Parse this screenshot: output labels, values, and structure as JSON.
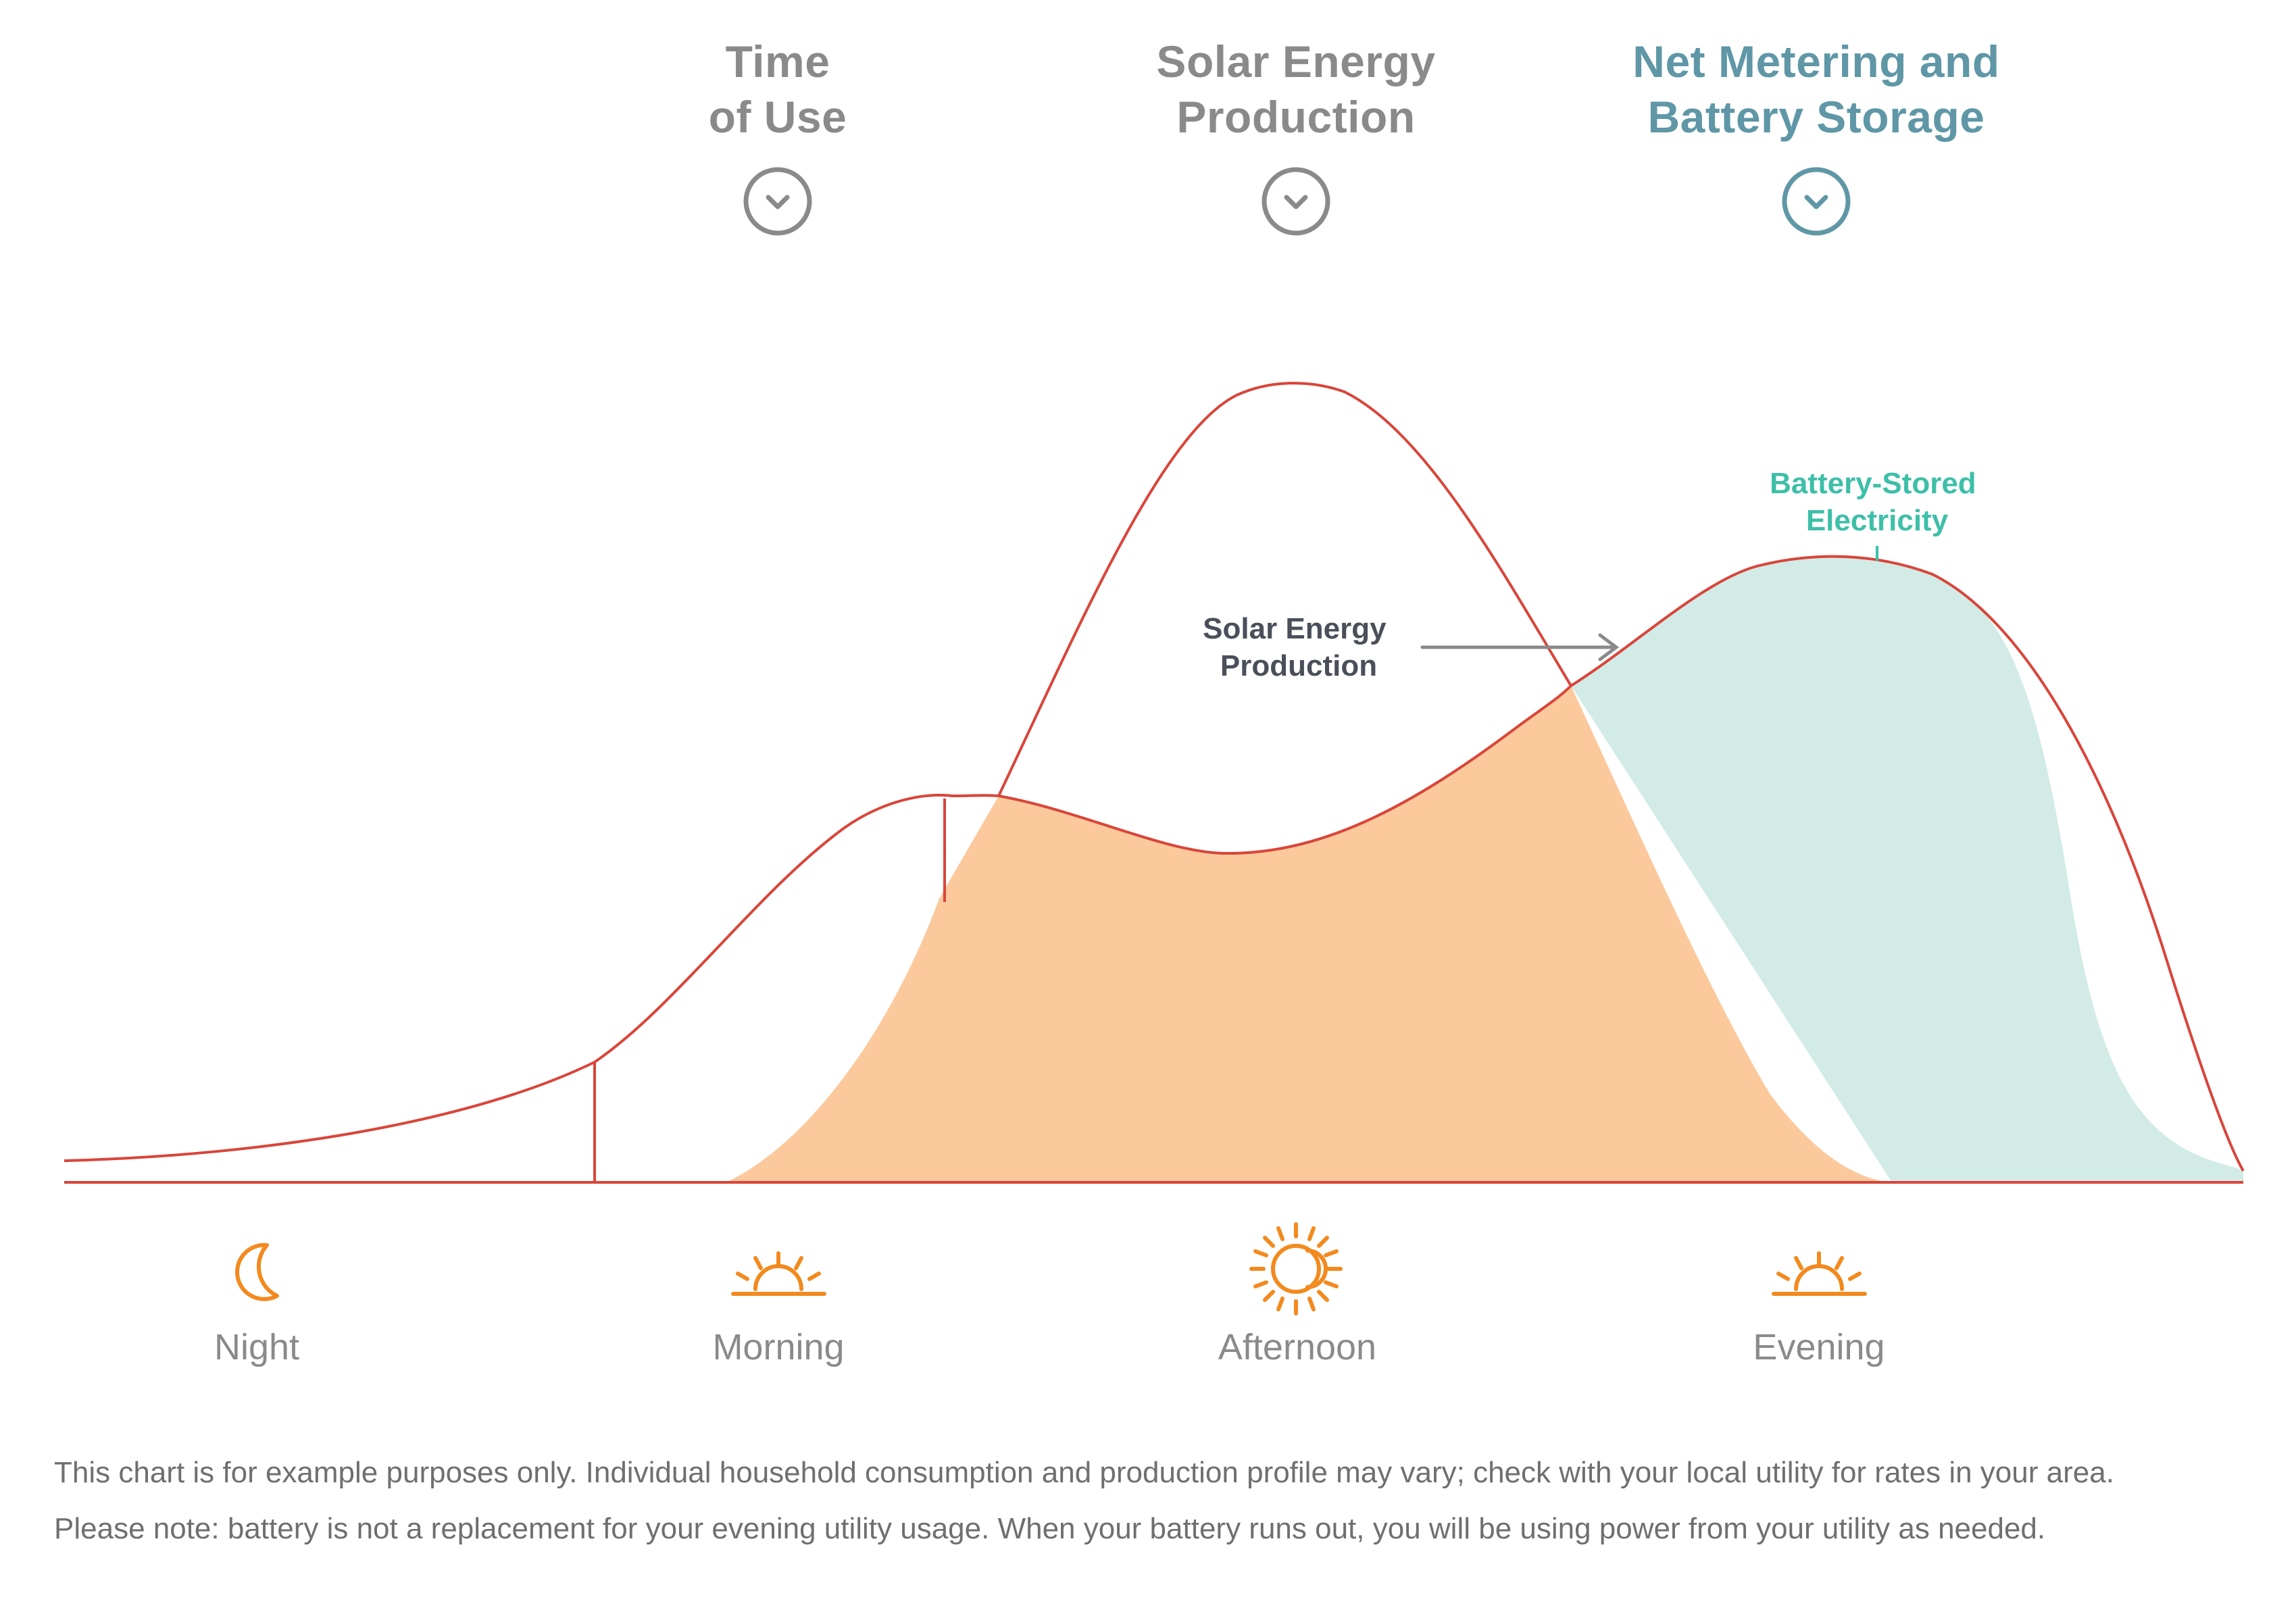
{
  "tabs": [
    {
      "line1": "Time",
      "line2": "of Use",
      "active": false
    },
    {
      "line1": "Solar Energy",
      "line2": "Production",
      "active": false
    },
    {
      "line1": "Net Metering and",
      "line2": "Battery Storage",
      "active": true
    }
  ],
  "icons": [
    "chevron-down-icon",
    "moon-icon",
    "sunrise-icon",
    "sun-icon",
    "sunset-icon"
  ],
  "colors": {
    "consumption_line": "#d9453a",
    "solar_used_fill": "#fbc99c",
    "battery_fill": "#d2ebe7",
    "battery_label": "#3dbfa8",
    "icon_orange": "#f28a1e",
    "tab_inactive": "#8a8a8a",
    "tab_active": "#5f97a6",
    "text_gray": "#8a8a8a"
  },
  "chart_data": {
    "type": "area",
    "title": "",
    "xlabel": "",
    "ylabel": "",
    "x_categories": [
      "Night",
      "Morning",
      "Afternoon",
      "Evening"
    ],
    "grid": false,
    "legend": "none",
    "series": [
      {
        "name": "",
        "role": "household consumption (line)",
        "points": [
          [
            0,
            0.025
          ],
          [
            0.2,
            0.1
          ],
          [
            0.24,
            0.3
          ],
          [
            0.35,
            0.75
          ],
          [
            0.42,
            0.8
          ],
          [
            0.52,
            0.68
          ],
          [
            0.62,
            0.79
          ],
          [
            0.72,
            1.0
          ],
          [
            0.8,
            1.3
          ],
          [
            0.86,
            1.36
          ],
          [
            0.92,
            1.22
          ],
          [
            1.0,
            0.04
          ]
        ]
      },
      {
        "name": "",
        "role": "solar production peak (line)",
        "points": [
          [
            0.43,
            0.8
          ],
          [
            0.51,
            1.49
          ],
          [
            0.57,
            1.6
          ],
          [
            0.62,
            1.35
          ],
          [
            0.69,
            1.04
          ]
        ]
      },
      {
        "name": "",
        "role": "solar energy used (filled area)",
        "points": [
          [
            0.303,
            0
          ],
          [
            0.36,
            0.35
          ],
          [
            0.43,
            0.8
          ],
          [
            0.52,
            0.68
          ],
          [
            0.62,
            0.79
          ],
          [
            0.69,
            1.04
          ],
          [
            0.76,
            0.55
          ],
          [
            0.84,
            0.0
          ]
        ]
      },
      {
        "name": "",
        "role": "battery-stored electricity (filled area)",
        "points": [
          [
            0.69,
            1.04
          ],
          [
            0.8,
            1.3
          ],
          [
            0.86,
            1.36
          ],
          [
            0.9,
            1.1
          ],
          [
            0.94,
            0.25
          ],
          [
            1.0,
            0.04
          ],
          [
            0.84,
            0.0
          ]
        ]
      }
    ],
    "annotations": [
      {
        "text": "Solar Energy Production",
        "line1": "Solar Energy",
        "line2": "Production"
      },
      {
        "text": "Battery-Stored Electricity",
        "line1": "Battery-Stored",
        "line2": "Electricity"
      }
    ]
  },
  "periods": [
    "Night",
    "Morning",
    "Afternoon",
    "Evening"
  ],
  "footnotes": [
    "This chart is for example purposes only. Individual household consumption and production profile may vary; check with your local utility for rates in your area.",
    "Please note: battery is not a replacement for your evening utility usage. When your battery runs out, you will be using power from your utility as needed."
  ]
}
